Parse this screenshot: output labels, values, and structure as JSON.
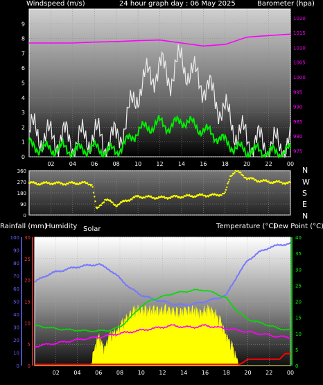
{
  "header": {
    "windspeed_label": "Windspeed (m/s)",
    "graph_title": "24 hour graph day : 06 May 2025",
    "barometer_label": "Barometer (hpa)"
  },
  "bottom_labels": {
    "rainfall": "Rainfall (mm)",
    "humidity": "Humidity",
    "solar": "Solar",
    "temperature": "Temperature (°C)",
    "dewpoint": "Dew Point (°C)"
  },
  "compass": [
    "N",
    "W",
    "S",
    "E",
    "N"
  ],
  "colors": {
    "wind_gust": "#e8e8e8",
    "wind_avg": "#00ee00",
    "barometer": "#ff00ff",
    "direction": "#ffff00",
    "humidity": "#7777ff",
    "temperature": "#00dd00",
    "dewpoint": "#ff00ff",
    "solar": "#ffff00",
    "rain": "#ff0000",
    "axis_left_purple": "#ff00ff",
    "axis_rain": "#ff3333",
    "axis_humidity": "#6666ff",
    "axis_temp": "#00ff00"
  },
  "chart_data": [
    {
      "id": "wind",
      "type": "line",
      "title": "24 hour graph day : 06 May 2025",
      "x_ticks": [
        "02",
        "04",
        "06",
        "08",
        "10",
        "12",
        "14",
        "16",
        "18",
        "20",
        "22",
        "00"
      ],
      "y_left_ticks": [
        "0",
        "1",
        "2",
        "3",
        "4",
        "5",
        "6",
        "7",
        "8",
        "9"
      ],
      "ylim_left": [
        0,
        10
      ],
      "y_right_ticks": [
        "975",
        "980",
        "985",
        "990",
        "995",
        "1000",
        "1005",
        "1010",
        "1015",
        "1020"
      ],
      "ylim_right": [
        973,
        1023
      ],
      "series": [
        {
          "name": "Windspeed (m/s)",
          "hours": [
            0,
            1,
            2,
            3,
            4,
            5,
            6,
            7,
            8,
            9,
            10,
            11,
            12,
            13,
            14,
            15,
            16,
            17,
            18,
            19,
            20,
            21,
            22,
            23,
            24
          ],
          "gust": [
            1.8,
            1.5,
            1.2,
            1.4,
            1.0,
            1.2,
            1.5,
            1.0,
            1.2,
            2.5,
            4.5,
            5.5,
            6.0,
            5.5,
            6.5,
            5.5,
            5.0,
            4.0,
            3.0,
            1.8,
            1.2,
            1.0,
            0.8,
            0.7,
            1.0
          ],
          "avg": [
            0.8,
            0.6,
            0.5,
            0.6,
            0.4,
            0.5,
            0.6,
            0.4,
            0.4,
            1.0,
            1.8,
            2.0,
            2.3,
            2.0,
            2.5,
            2.2,
            1.8,
            1.5,
            1.0,
            0.6,
            0.4,
            0.4,
            0.3,
            0.3,
            0.4
          ]
        },
        {
          "name": "Barometer (hpa)",
          "hours": [
            0,
            2,
            4,
            6,
            8,
            10,
            12,
            14,
            16,
            18,
            20,
            22,
            24
          ],
          "values": [
            1011.5,
            1011.5,
            1011.5,
            1011.8,
            1012.0,
            1012.3,
            1012.5,
            1011.5,
            1010.5,
            1011.0,
            1013.5,
            1014.0,
            1014.5
          ]
        }
      ]
    },
    {
      "id": "direction",
      "type": "scatter",
      "y_ticks": [
        "360",
        "270",
        "180",
        "90",
        "0"
      ],
      "ylim": [
        0,
        360
      ],
      "x_ticks": [
        "02",
        "04",
        "06",
        "08",
        "10",
        "12",
        "14",
        "16",
        "18",
        "20",
        "22",
        "00"
      ],
      "hours": [
        0,
        1,
        2,
        3,
        4,
        5,
        5.8,
        6.2,
        7,
        8,
        9,
        10,
        11,
        12,
        13,
        14,
        15,
        16,
        17,
        18,
        18.5,
        19,
        19.5,
        20,
        21,
        22,
        23,
        24
      ],
      "values": [
        260,
        255,
        260,
        255,
        258,
        260,
        250,
        40,
        130,
        80,
        120,
        150,
        145,
        140,
        145,
        150,
        155,
        160,
        160,
        175,
        320,
        360,
        330,
        300,
        280,
        270,
        265,
        260
      ]
    },
    {
      "id": "bottom",
      "type": "line",
      "x_ticks": [
        "02",
        "04",
        "06",
        "08",
        "10",
        "12",
        "14",
        "16",
        "18",
        "20",
        "22",
        "00"
      ],
      "y_humidity_ticks": [
        "0",
        "10",
        "20",
        "30",
        "40",
        "50",
        "60",
        "70",
        "80",
        "90",
        "100"
      ],
      "ylim_humidity": [
        0,
        100
      ],
      "y_rain_ticks": [
        "0",
        "5",
        "10",
        "15",
        "20",
        "25",
        "30"
      ],
      "ylim_rain": [
        0,
        30
      ],
      "y_temp_ticks": [
        "0",
        "5",
        "10",
        "15",
        "20",
        "25",
        "30",
        "35",
        "40"
      ],
      "ylim_temp": [
        0,
        40
      ],
      "series": [
        {
          "name": "Humidity",
          "hours": [
            0,
            1,
            2,
            3,
            4,
            5,
            6,
            7,
            8,
            9,
            10,
            11,
            12,
            13,
            14,
            15,
            16,
            17,
            18,
            19,
            20,
            21,
            22,
            23,
            24
          ],
          "values": [
            65,
            70,
            73,
            75,
            77,
            78,
            79,
            75,
            68,
            60,
            55,
            52,
            50,
            48,
            47,
            48,
            50,
            52,
            55,
            70,
            82,
            88,
            92,
            94,
            95
          ]
        },
        {
          "name": "Temperature (°C)",
          "hours": [
            0,
            1,
            2,
            3,
            4,
            5,
            6,
            7,
            8,
            9,
            10,
            11,
            12,
            13,
            14,
            15,
            16,
            17,
            18,
            19,
            20,
            21,
            22,
            23,
            24
          ],
          "values": [
            12.5,
            12.0,
            11.5,
            11.2,
            11.0,
            10.8,
            10.8,
            11.0,
            12.0,
            15.0,
            18.5,
            20.5,
            21.5,
            22.5,
            23.0,
            23.5,
            23.5,
            22.5,
            21.0,
            17.0,
            14.5,
            13.5,
            12.5,
            11.5,
            11.0
          ]
        },
        {
          "name": "Dew Point (°C)",
          "hours": [
            0,
            1,
            2,
            3,
            4,
            5,
            6,
            7,
            8,
            9,
            10,
            11,
            12,
            13,
            14,
            15,
            16,
            17,
            18,
            19,
            20,
            21,
            22,
            23,
            24
          ],
          "values": [
            6.0,
            6.5,
            7.0,
            7.5,
            8.0,
            8.5,
            8.8,
            9.5,
            10.0,
            10.5,
            11.0,
            11.5,
            12.0,
            12.5,
            12.0,
            12.0,
            12.5,
            12.0,
            11.5,
            11.0,
            10.5,
            10.0,
            9.5,
            9.0,
            8.8
          ]
        },
        {
          "name": "Solar",
          "hours": [
            0,
            5.2,
            5.5,
            6,
            6.5,
            7,
            7.5,
            8,
            8.5,
            9,
            9.5,
            10,
            10.5,
            11,
            11.5,
            12,
            12.5,
            13,
            13.5,
            14,
            14.5,
            15,
            15.5,
            16,
            16.5,
            17,
            17.5,
            18,
            18.5,
            19,
            19.2,
            24
          ],
          "values": [
            0,
            0,
            6,
            11,
            7,
            11,
            12,
            14,
            16,
            18,
            19,
            19,
            19,
            19,
            19,
            19,
            19,
            19,
            18,
            19,
            19,
            19,
            18,
            19,
            19,
            18,
            15,
            11,
            8,
            4,
            0,
            0
          ]
        },
        {
          "name": "Rainfall (mm)",
          "hours": [
            0,
            19.2,
            19.6,
            20,
            21,
            22,
            23,
            23.5,
            24
          ],
          "values": [
            0.3,
            0.3,
            0.8,
            1.5,
            1.5,
            1.5,
            1.5,
            2.8,
            2.8
          ]
        }
      ]
    }
  ]
}
